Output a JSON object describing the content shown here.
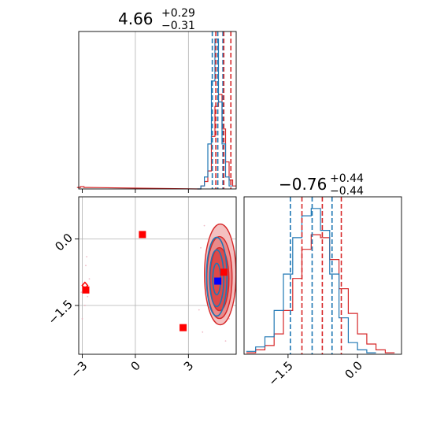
{
  "chart_data": {
    "type": "corner",
    "colors": {
      "blue": "#1f77b4",
      "red": "#d62728",
      "grid": "#b0b0b0",
      "marker_red": "#ff0000",
      "marker_blue": "#0000ff"
    },
    "grid": true,
    "panels": {
      "top_left_histogram": {
        "title": {
          "value": "4.66",
          "upper": "+0.29",
          "lower": "−0.31"
        },
        "xlim": [
          -3.2,
          5.7
        ],
        "grid_x": [
          0,
          3
        ],
        "blue_quantiles": [
          4.35,
          4.66,
          4.95
        ],
        "red_quantiles": [
          4.55,
          5.0,
          5.4
        ],
        "blue_hist": {
          "x": [
            3.6,
            3.8,
            4.0,
            4.2,
            4.4,
            4.6,
            4.8,
            5.0,
            5.2,
            5.4
          ],
          "y": [
            0.0,
            0.02,
            0.08,
            0.3,
            0.72,
            1.0,
            0.58,
            0.3,
            0.08,
            0.02
          ]
        },
        "red_hist": {
          "x": [
            -3.2,
            -3.0,
            -2.8,
            3.6,
            3.8,
            4.0,
            4.2,
            4.4,
            4.6,
            4.8,
            5.0,
            5.2,
            5.4,
            5.6
          ],
          "y": [
            0.01,
            0.015,
            0.01,
            0.0,
            0.02,
            0.05,
            0.12,
            0.35,
            0.55,
            0.63,
            0.4,
            0.18,
            0.06,
            0.02
          ]
        }
      },
      "bottom_left_scatter": {
        "xlim": [
          -3.2,
          5.7
        ],
        "ylim": [
          -2.6,
          0.95
        ],
        "xticks": [
          -3,
          0,
          3
        ],
        "xtick_labels": [
          "−3",
          "0",
          "3"
        ],
        "yticks": [
          0.0,
          -1.5
        ],
        "ytick_labels": [
          "0.0",
          "−1.5"
        ],
        "red_markers": [
          {
            "x": 0.4,
            "y": 0.1
          },
          {
            "x": -2.8,
            "y": -1.15
          },
          {
            "x": 2.7,
            "y": -2.0
          },
          {
            "x": 5.0,
            "y": -0.75
          }
        ],
        "red_diamond": {
          "x": -2.85,
          "y": -1.05
        },
        "blue_marker": {
          "x": 4.66,
          "y": -0.95
        },
        "red_contour_center": {
          "x": 4.8,
          "y": -0.8
        },
        "blue_contour_center": {
          "x": 4.6,
          "y": -0.85
        }
      },
      "bottom_right_histogram": {
        "title": {
          "value": "−0.76",
          "upper": "+0.44",
          "lower": "−0.44"
        },
        "xlim": [
          -2.45,
          0.95
        ],
        "xticks": [
          -1.5,
          0.0
        ],
        "xtick_labels": [
          "−1.5",
          "0.0"
        ],
        "blue_quantiles": [
          -1.45,
          -0.98,
          -0.55
        ],
        "red_quantiles": [
          -1.2,
          -0.76,
          -0.35
        ],
        "blue_hist": {
          "x": [
            -2.3,
            -2.1,
            -1.9,
            -1.7,
            -1.5,
            -1.3,
            -1.1,
            -0.9,
            -0.7,
            -0.5,
            -0.3,
            -0.1,
            0.1,
            0.3
          ],
          "y": [
            0.02,
            0.05,
            0.12,
            0.3,
            0.55,
            0.8,
            0.95,
            1.0,
            0.85,
            0.55,
            0.25,
            0.08,
            0.03,
            0.01
          ]
        },
        "red_hist": {
          "x": [
            -2.3,
            -2.1,
            -1.9,
            -1.7,
            -1.5,
            -1.3,
            -1.1,
            -0.9,
            -0.7,
            -0.5,
            -0.3,
            -0.1,
            0.1,
            0.3,
            0.5,
            0.7
          ],
          "y": [
            0.01,
            0.03,
            0.06,
            0.14,
            0.3,
            0.52,
            0.72,
            0.82,
            0.8,
            0.65,
            0.45,
            0.28,
            0.14,
            0.07,
            0.03,
            0.01
          ]
        }
      }
    }
  }
}
